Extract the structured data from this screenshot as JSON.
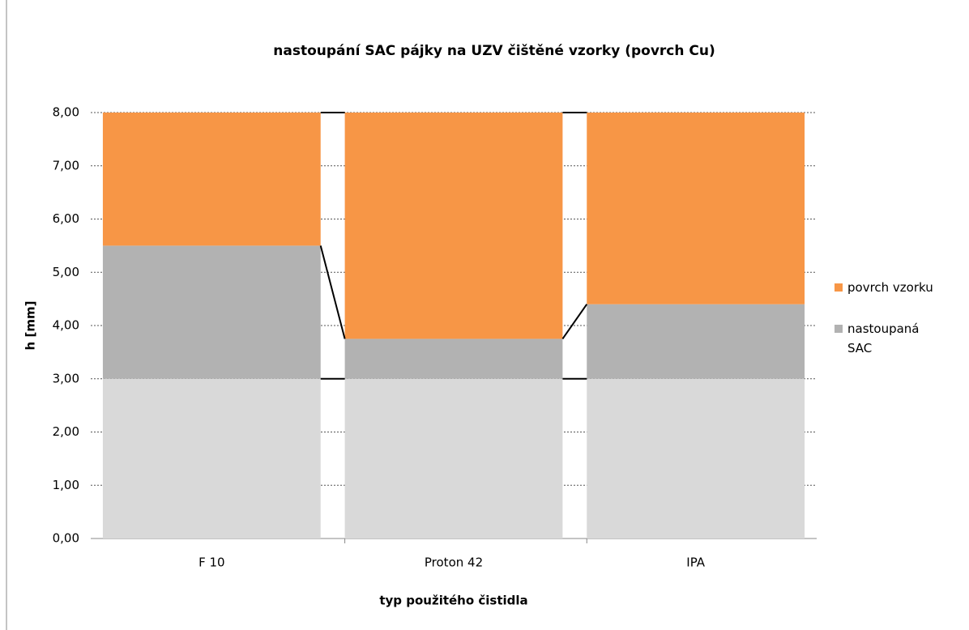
{
  "chart_data": {
    "type": "stacked_bar",
    "title": "nastoupání SAC pájky na UZV čištěné vzorky (povrch Cu)",
    "xlabel": "typ použitého čistidla",
    "ylabel": "h [mm]",
    "categories": [
      "F 10",
      "Proton 42",
      "IPA"
    ],
    "series": [
      {
        "color": "#d9d9d9",
        "values": [
          3,
          3,
          3
        ]
      },
      {
        "name": "nastoupaná SAC",
        "color": "#b2b2b2",
        "values": [
          2.5,
          0.75,
          1.4
        ]
      },
      {
        "name": "povrch vzorku",
        "color": "#f79646",
        "values": [
          2.5,
          4.25,
          3.6
        ]
      }
    ],
    "ylim": [
      0,
      8
    ],
    "yticks": [
      {
        "value": 0,
        "label": "0,00"
      },
      {
        "value": 1,
        "label": "1,00"
      },
      {
        "value": 2,
        "label": "2,00"
      },
      {
        "value": 3,
        "label": "3,00"
      },
      {
        "value": 4,
        "label": "4,00"
      },
      {
        "value": 5,
        "label": "5,00"
      },
      {
        "value": 6,
        "label": "6,00"
      },
      {
        "value": 7,
        "label": "7,00"
      },
      {
        "value": 8,
        "label": "8,00"
      }
    ],
    "grid": true,
    "legend": "right"
  }
}
